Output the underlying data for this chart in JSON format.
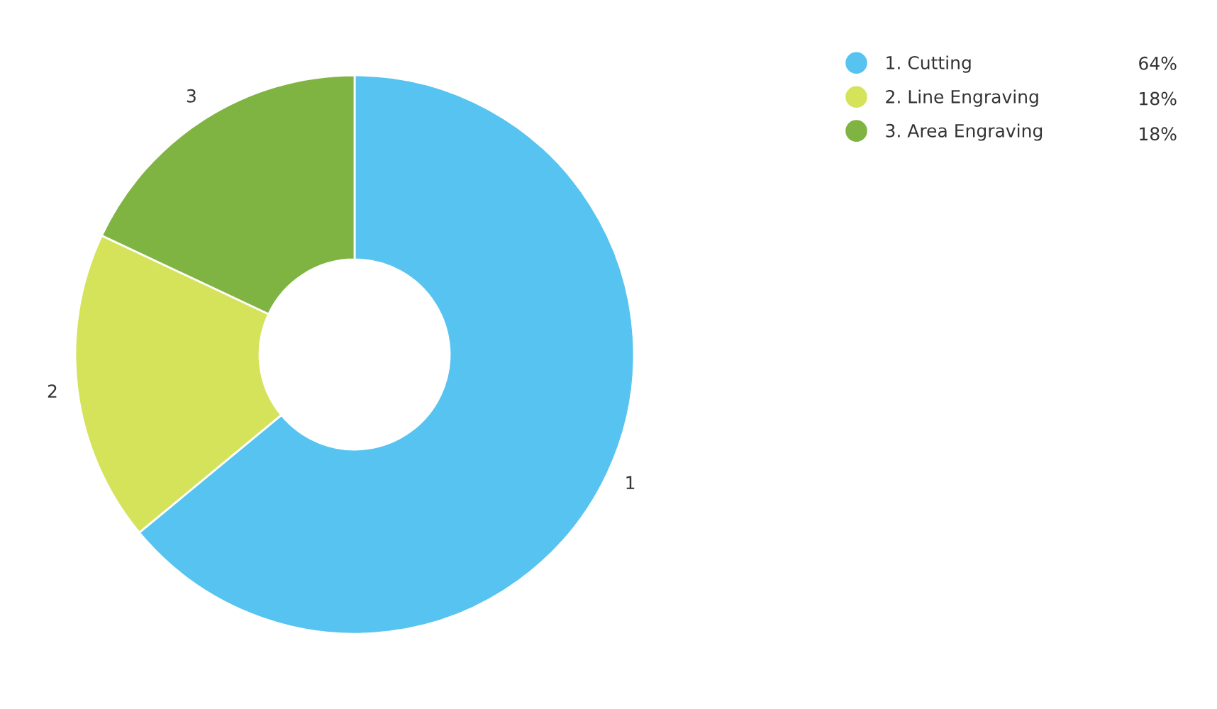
{
  "chart_data": {
    "type": "donut",
    "categories": [
      "1. Cutting",
      "2. Line Engraving",
      "3. Area Engraving"
    ],
    "values": [
      64,
      18,
      18
    ],
    "colors": [
      "#56c3f0",
      "#d5e35b",
      "#7fb443"
    ],
    "value_labels": [
      "64%",
      "18%",
      "18%"
    ],
    "annotations": [
      "1",
      "2",
      "3"
    ],
    "legend": "top right"
  }
}
